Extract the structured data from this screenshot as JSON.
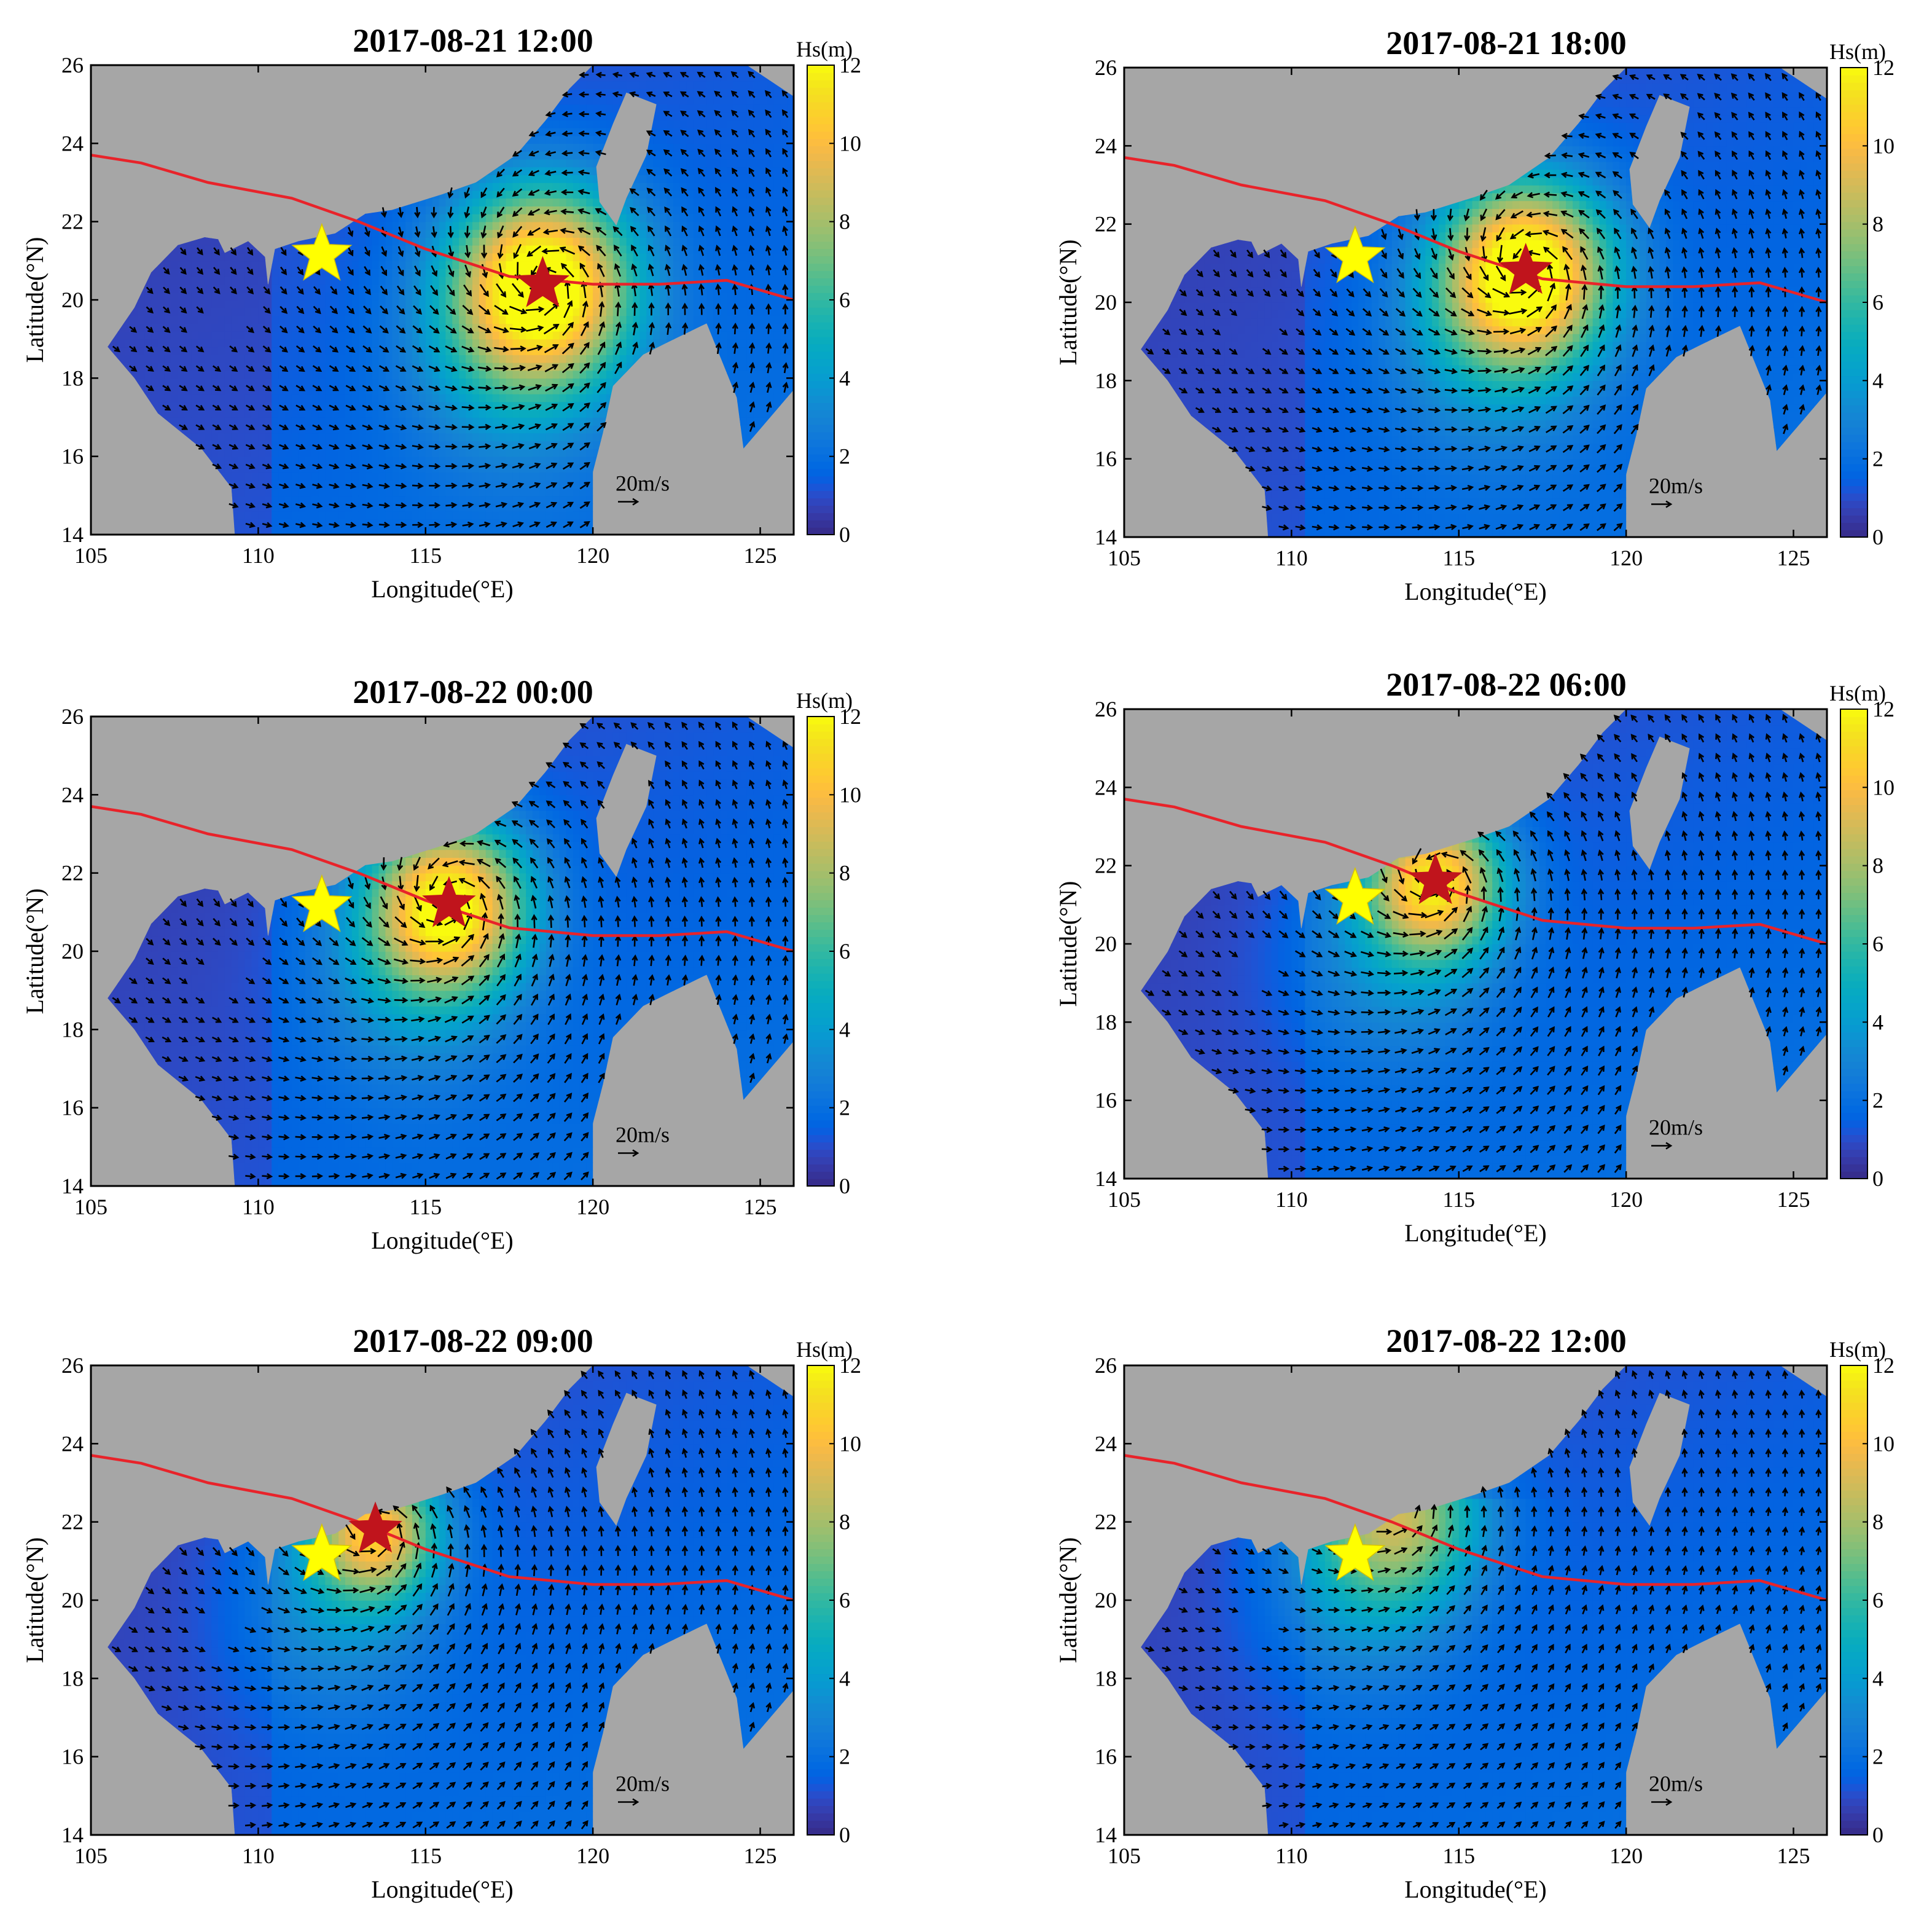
{
  "figure": {
    "panels": [
      {
        "title": "2017-08-21 12:00",
        "typhoon": {
          "lon": 118.5,
          "lat": 20.4
        },
        "hs_max": 11.5,
        "radius": 1.7
      },
      {
        "title": "2017-08-21 18:00",
        "typhoon": {
          "lon": 117.0,
          "lat": 20.8
        },
        "hs_max": 11.5,
        "radius": 1.6
      },
      {
        "title": "2017-08-22 00:00",
        "typhoon": {
          "lon": 115.7,
          "lat": 21.2
        },
        "hs_max": 10.5,
        "radius": 1.5
      },
      {
        "title": "2017-08-22 06:00",
        "typhoon": {
          "lon": 114.3,
          "lat": 21.6
        },
        "hs_max": 9.5,
        "radius": 1.3
      },
      {
        "title": "2017-08-22 09:00",
        "typhoon": {
          "lon": 113.5,
          "lat": 21.8
        },
        "hs_max": 8.5,
        "radius": 1.2
      },
      {
        "title": "2017-08-22 12:00",
        "typhoon": null,
        "hs_max": 6.5,
        "radius": 1.6
      }
    ],
    "station": {
      "lon": 111.9,
      "lat": 21.15
    },
    "track": [
      [
        105,
        23.7
      ],
      [
        106.5,
        23.5
      ],
      [
        108.5,
        23.0
      ],
      [
        111,
        22.6
      ],
      [
        113,
        22.0
      ],
      [
        115,
        21.3
      ],
      [
        117.5,
        20.6
      ],
      [
        120,
        20.4
      ],
      [
        122,
        20.4
      ],
      [
        124,
        20.5
      ],
      [
        126,
        20.0
      ]
    ],
    "axes": {
      "xlabel": "Longitude(°E)",
      "ylabel": "Latitude(°N)",
      "xlim": [
        105,
        126
      ],
      "ylim": [
        14,
        26
      ],
      "xticks": [
        105,
        110,
        115,
        120,
        125
      ],
      "yticks": [
        14,
        16,
        18,
        20,
        22,
        24,
        26
      ]
    },
    "colorbar": {
      "title": "Hs(m)",
      "range": [
        0,
        12
      ],
      "ticks": [
        0,
        2,
        4,
        6,
        8,
        10,
        12
      ],
      "colormap": "parula"
    },
    "reference_vector": {
      "label": "20m/s",
      "speed": 20
    },
    "colors": {
      "land": "#a6a6a6",
      "track": "#e8232a",
      "station_star": "#ffff00",
      "typhoon_star": "#c0141c",
      "arrows": "#000000"
    }
  }
}
